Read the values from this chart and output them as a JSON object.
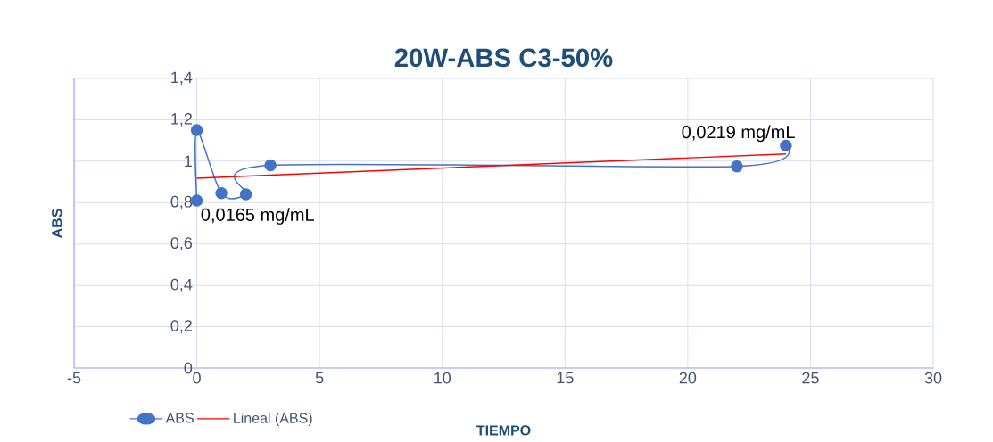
{
  "chart_data": {
    "type": "line",
    "title": "20W-ABS C3-50%",
    "xlabel": "TIEMPO",
    "ylabel": "ABS",
    "xlim": [
      -5,
      30
    ],
    "xticks": [
      -5,
      0,
      5,
      10,
      15,
      20,
      25,
      30
    ],
    "ylim": [
      0,
      1.4
    ],
    "yticks": [
      {
        "value": 0,
        "label": "0"
      },
      {
        "value": 0.2,
        "label": "0,2"
      },
      {
        "value": 0.4,
        "label": "0,4"
      },
      {
        "value": 0.6,
        "label": "0,6"
      },
      {
        "value": 0.8,
        "label": "0,8"
      },
      {
        "value": 1,
        "label": "1"
      },
      {
        "value": 1.2,
        "label": "1,2"
      },
      {
        "value": 1.4,
        "label": "1,4"
      }
    ],
    "grid": true,
    "legend": "bottom",
    "series": [
      {
        "name": "ABS",
        "color": "#4472c4",
        "marker": "circle",
        "x": [
          0,
          0,
          1,
          2,
          3,
          22,
          24
        ],
        "values": [
          0.81,
          1.15,
          0.845,
          0.84,
          0.98,
          0.975,
          1.075
        ]
      },
      {
        "name": "Lineal (ABS)",
        "color": "#ff0000",
        "marker": "none",
        "x": [
          0,
          24
        ],
        "values": [
          0.918,
          1.035
        ]
      }
    ],
    "annotations": [
      {
        "text": "0,0165 mg/mL",
        "x": 0,
        "y": 0.81
      },
      {
        "text": "0,0219 mg/mL",
        "x": 24,
        "y": 1.075
      }
    ]
  }
}
